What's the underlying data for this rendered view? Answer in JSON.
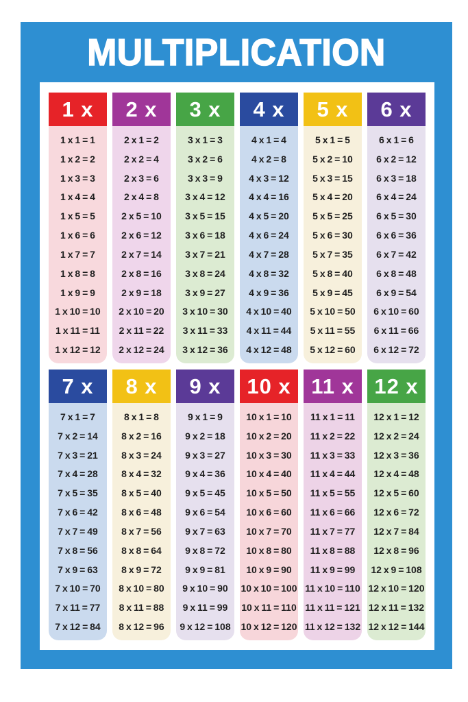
{
  "title": "MULTIPLICATION",
  "colors": {
    "frame_blue": "#2E8FD2",
    "equation_text": "#1F1F1F",
    "panel_white": "#FFFFFF"
  },
  "tables": [
    {
      "label": "1 x",
      "header_color": "#E62328",
      "body_color": "#F8D9DD",
      "equations": [
        "1 x 1 = 1",
        "1 x 2 = 2",
        "1 x 3 = 3",
        "1 x 4 = 4",
        "1 x 5 = 5",
        "1 x 6 = 6",
        "1 x 7 = 7",
        "1 x 8 = 8",
        "1 x 9 = 9",
        "1 x 10 = 10",
        "1 x 11 = 11",
        "1 x 12 = 12"
      ]
    },
    {
      "label": "2 x",
      "header_color": "#A03699",
      "body_color": "#EFD6EB",
      "equations": [
        "2 x 1 = 2",
        "2 x 2 = 4",
        "2 x 3 = 6",
        "2 x 4 = 8",
        "2 x 5 = 10",
        "2 x 6 = 12",
        "2 x 7 = 14",
        "2 x 8 = 16",
        "2 x 9 = 18",
        "2 x 10 = 20",
        "2 x 11 = 22",
        "2 x 12 = 24"
      ]
    },
    {
      "label": "3 x",
      "header_color": "#47A546",
      "body_color": "#DCEBD2",
      "equations": [
        "3 x 1 = 3",
        "3 x 2 = 6",
        "3 x 3 = 9",
        "3 x 4 = 12",
        "3 x 5 = 15",
        "3 x 6 = 18",
        "3 x 7 = 21",
        "3 x 8 = 24",
        "3 x 9 = 27",
        "3 x 10 = 30",
        "3 x 11 = 33",
        "3 x 12 = 36"
      ]
    },
    {
      "label": "4 x",
      "header_color": "#2A4B9F",
      "body_color": "#CADAEE",
      "equations": [
        "4 x 1 = 4",
        "4 x 2 = 8",
        "4 x 3 = 12",
        "4 x 4 = 16",
        "4 x 5 = 20",
        "4 x 6 = 24",
        "4 x 7 = 28",
        "4 x 8 = 32",
        "4 x 9 = 36",
        "4 x 10 = 40",
        "4 x 11 = 44",
        "4 x 12 = 48"
      ]
    },
    {
      "label": "5 x",
      "header_color": "#F2C115",
      "body_color": "#F7F0DC",
      "equations": [
        "5 x 1 = 5",
        "5 x 2 = 10",
        "5 x 3 = 15",
        "5 x 4 = 20",
        "5 x 5 = 25",
        "5 x 6 = 30",
        "5 x 7 = 35",
        "5 x 8 = 40",
        "5 x 9 = 45",
        "5 x 10 = 50",
        "5 x 11 = 55",
        "5 x 12 = 60"
      ]
    },
    {
      "label": "6 x",
      "header_color": "#5B3A97",
      "body_color": "#E6E0EE",
      "equations": [
        "6 x 1 = 6",
        "6 x 2 = 12",
        "6 x 3 = 18",
        "6 x 4 = 24",
        "6 x 5 = 30",
        "6 x 6 = 36",
        "6 x 7 = 42",
        "6 x 8 = 48",
        "6 x 9 = 54",
        "6 x 10 = 60",
        "6 x 11 = 66",
        "6 x 12 = 72"
      ]
    },
    {
      "label": "7 x",
      "header_color": "#2A4B9F",
      "body_color": "#CADAEE",
      "equations": [
        "7 x 1 = 7",
        "7 x 2 = 14",
        "7 x 3 = 21",
        "7 x 4 = 28",
        "7 x 5 = 35",
        "7 x 6 = 42",
        "7 x 7 = 49",
        "7 x 8 = 56",
        "7 x 9 = 63",
        "7 x 10 = 70",
        "7 x 11 = 77",
        "7 x 12 = 84"
      ]
    },
    {
      "label": "8 x",
      "header_color": "#F2C115",
      "body_color": "#F7F0DC",
      "equations": [
        "8 x 1 = 8",
        "8 x 2 = 16",
        "8 x 3 = 24",
        "8 x 4 = 32",
        "8 x 5 = 40",
        "8 x 6 = 48",
        "8 x 7 = 56",
        "8 x 8 = 64",
        "8 x 9 = 72",
        "8 x 10 = 80",
        "8 x 11 = 88",
        "8 x 12 = 96"
      ]
    },
    {
      "label": "9 x",
      "header_color": "#5B3A97",
      "body_color": "#E6E0EE",
      "equations": [
        "9 x 1 = 9",
        "9 x 2 = 18",
        "9 x 3 = 27",
        "9 x 4 = 36",
        "9 x 5 = 45",
        "9 x 6 = 54",
        "9 x 7 = 63",
        "9 x 8 = 72",
        "9 x 9 = 81",
        "9 x 10 = 90",
        "9 x 11 = 99",
        "9 x 12 = 108"
      ]
    },
    {
      "label": "10 x",
      "header_color": "#E62328",
      "body_color": "#F7D6DA",
      "equations": [
        "10 x 1 = 10",
        "10 x 2 = 20",
        "10 x 3 = 30",
        "10 x 4 = 40",
        "10 x 5 = 50",
        "10 x 6 = 60",
        "10 x 7 = 70",
        "10 x 8 = 80",
        "10 x 9 = 90",
        "10 x 10 = 100",
        "10 x 11 = 110",
        "10 x 12 = 120"
      ]
    },
    {
      "label": "11 x",
      "header_color": "#A03699",
      "body_color": "#EDD3E7",
      "equations": [
        "11 x 1 = 11",
        "11 x 2 = 22",
        "11 x 3 = 33",
        "11 x 4 = 44",
        "11 x 5 = 55",
        "11 x 6 = 66",
        "11 x 7 = 77",
        "11 x 8 = 88",
        "11 x 9 = 99",
        "11 x 10 = 110",
        "11 x 11 = 121",
        "11 x 12 = 132"
      ]
    },
    {
      "label": "12 x",
      "header_color": "#47A546",
      "body_color": "#DCEBD2",
      "equations": [
        "12 x 1 = 12",
        "12 x 2 = 24",
        "12 x 3 = 36",
        "12 x 4 = 48",
        "12 x 5 = 60",
        "12 x 6 = 72",
        "12 x 7 = 84",
        "12 x 8 = 96",
        "12 x 9 = 108",
        "12 x 10 = 120",
        "12 x 11 = 132",
        "12 x 12 = 144"
      ]
    }
  ]
}
